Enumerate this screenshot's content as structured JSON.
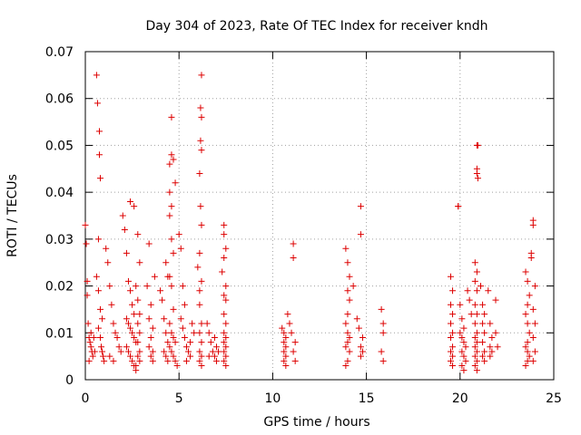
{
  "chart_data": {
    "type": "scatter",
    "title": "Day 304 of 2023, Rate Of TEC Index for receiver kndh",
    "xlabel": "GPS time / hours",
    "ylabel": "ROTI / TECUs",
    "xlim": [
      0,
      25
    ],
    "ylim": [
      0,
      0.07
    ],
    "xticks": [
      0,
      5,
      10,
      15,
      20,
      25
    ],
    "xtick_labels": [
      "0",
      "5",
      "10",
      "15",
      "20",
      "25"
    ],
    "yticks": [
      0,
      0.01,
      0.02,
      0.03,
      0.04,
      0.05,
      0.06,
      0.07
    ],
    "ytick_labels": [
      "0",
      "0.01",
      "0.02",
      "0.03",
      "0.04",
      "0.05",
      "0.06",
      "0.07"
    ],
    "grid": true,
    "marker": "+",
    "colors": {
      "points": "#dd0000",
      "grid": "#a0a0a0",
      "axes": "#000000"
    },
    "points": [
      [
        0.0,
        0.033
      ],
      [
        0.05,
        0.029
      ],
      [
        0.1,
        0.021
      ],
      [
        0.1,
        0.018
      ],
      [
        0.15,
        0.012
      ],
      [
        0.2,
        0.009
      ],
      [
        0.25,
        0.008
      ],
      [
        0.3,
        0.007
      ],
      [
        0.35,
        0.006
      ],
      [
        0.4,
        0.005
      ],
      [
        0.2,
        0.004
      ],
      [
        0.3,
        0.01
      ],
      [
        0.45,
        0.009
      ],
      [
        0.5,
        0.006
      ],
      [
        0.6,
        0.065
      ],
      [
        0.65,
        0.059
      ],
      [
        0.75,
        0.053
      ],
      [
        0.75,
        0.048
      ],
      [
        0.8,
        0.043
      ],
      [
        0.7,
        0.03
      ],
      [
        0.6,
        0.022
      ],
      [
        0.7,
        0.019
      ],
      [
        0.8,
        0.015
      ],
      [
        0.9,
        0.013
      ],
      [
        0.7,
        0.011
      ],
      [
        0.8,
        0.009
      ],
      [
        0.85,
        0.007
      ],
      [
        0.9,
        0.006
      ],
      [
        0.95,
        0.005
      ],
      [
        1.0,
        0.004
      ],
      [
        1.1,
        0.028
      ],
      [
        1.2,
        0.025
      ],
      [
        1.3,
        0.02
      ],
      [
        1.4,
        0.016
      ],
      [
        1.5,
        0.012
      ],
      [
        1.6,
        0.01
      ],
      [
        1.7,
        0.009
      ],
      [
        1.8,
        0.007
      ],
      [
        1.9,
        0.006
      ],
      [
        1.3,
        0.005
      ],
      [
        1.5,
        0.004
      ],
      [
        2.0,
        0.035
      ],
      [
        2.1,
        0.032
      ],
      [
        2.2,
        0.027
      ],
      [
        2.3,
        0.021
      ],
      [
        2.4,
        0.019
      ],
      [
        2.5,
        0.016
      ],
      [
        2.6,
        0.014
      ],
      [
        2.2,
        0.013
      ],
      [
        2.3,
        0.012
      ],
      [
        2.4,
        0.011
      ],
      [
        2.5,
        0.01
      ],
      [
        2.6,
        0.009
      ],
      [
        2.7,
        0.008
      ],
      [
        2.2,
        0.007
      ],
      [
        2.3,
        0.006
      ],
      [
        2.4,
        0.005
      ],
      [
        2.5,
        0.004
      ],
      [
        2.6,
        0.003
      ],
      [
        2.7,
        0.002
      ],
      [
        2.4,
        0.038
      ],
      [
        2.6,
        0.037
      ],
      [
        2.8,
        0.031
      ],
      [
        2.9,
        0.025
      ],
      [
        2.7,
        0.02
      ],
      [
        2.8,
        0.017
      ],
      [
        2.9,
        0.014
      ],
      [
        2.8,
        0.012
      ],
      [
        2.9,
        0.01
      ],
      [
        2.8,
        0.008
      ],
      [
        2.9,
        0.006
      ],
      [
        2.8,
        0.005
      ],
      [
        2.9,
        0.004
      ],
      [
        2.7,
        0.003
      ],
      [
        3.3,
        0.02
      ],
      [
        3.5,
        0.016
      ],
      [
        3.4,
        0.013
      ],
      [
        3.6,
        0.011
      ],
      [
        3.5,
        0.009
      ],
      [
        3.4,
        0.007
      ],
      [
        3.6,
        0.006
      ],
      [
        3.5,
        0.005
      ],
      [
        3.6,
        0.004
      ],
      [
        3.4,
        0.029
      ],
      [
        3.7,
        0.022
      ],
      [
        4.0,
        0.019
      ],
      [
        4.1,
        0.017
      ],
      [
        4.3,
        0.025
      ],
      [
        4.4,
        0.022
      ],
      [
        4.2,
        0.013
      ],
      [
        4.3,
        0.01
      ],
      [
        4.4,
        0.008
      ],
      [
        4.2,
        0.006
      ],
      [
        4.3,
        0.005
      ],
      [
        4.4,
        0.004
      ],
      [
        4.6,
        0.056
      ],
      [
        4.6,
        0.048
      ],
      [
        4.7,
        0.047
      ],
      [
        4.5,
        0.04
      ],
      [
        4.6,
        0.037
      ],
      [
        4.5,
        0.035
      ],
      [
        4.6,
        0.03
      ],
      [
        4.7,
        0.027
      ],
      [
        4.5,
        0.022
      ],
      [
        4.6,
        0.02
      ],
      [
        4.7,
        0.015
      ],
      [
        4.5,
        0.012
      ],
      [
        4.6,
        0.01
      ],
      [
        4.7,
        0.009
      ],
      [
        4.8,
        0.008
      ],
      [
        4.5,
        0.007
      ],
      [
        4.6,
        0.006
      ],
      [
        4.7,
        0.005
      ],
      [
        4.8,
        0.004
      ],
      [
        4.9,
        0.003
      ],
      [
        4.5,
        0.046
      ],
      [
        4.8,
        0.042
      ],
      [
        5.0,
        0.031
      ],
      [
        5.1,
        0.028
      ],
      [
        5.2,
        0.02
      ],
      [
        5.3,
        0.016
      ],
      [
        5.1,
        0.013
      ],
      [
        5.2,
        0.011
      ],
      [
        5.3,
        0.009
      ],
      [
        5.4,
        0.007
      ],
      [
        5.5,
        0.006
      ],
      [
        5.6,
        0.005
      ],
      [
        5.4,
        0.004
      ],
      [
        5.7,
        0.012
      ],
      [
        5.8,
        0.01
      ],
      [
        5.6,
        0.008
      ],
      [
        6.0,
        0.024
      ],
      [
        6.1,
        0.019
      ],
      [
        6.2,
        0.065
      ],
      [
        6.15,
        0.058
      ],
      [
        6.2,
        0.056
      ],
      [
        6.15,
        0.051
      ],
      [
        6.2,
        0.049
      ],
      [
        6.1,
        0.044
      ],
      [
        6.15,
        0.037
      ],
      [
        6.2,
        0.033
      ],
      [
        6.1,
        0.027
      ],
      [
        6.2,
        0.021
      ],
      [
        6.1,
        0.016
      ],
      [
        6.2,
        0.012
      ],
      [
        6.1,
        0.01
      ],
      [
        6.2,
        0.008
      ],
      [
        6.1,
        0.006
      ],
      [
        6.2,
        0.005
      ],
      [
        6.1,
        0.004
      ],
      [
        6.2,
        0.003
      ],
      [
        6.5,
        0.012
      ],
      [
        6.6,
        0.01
      ],
      [
        6.7,
        0.008
      ],
      [
        6.8,
        0.006
      ],
      [
        6.6,
        0.005
      ],
      [
        6.9,
        0.009
      ],
      [
        7.0,
        0.007
      ],
      [
        7.1,
        0.006
      ],
      [
        6.9,
        0.005
      ],
      [
        7.0,
        0.004
      ],
      [
        7.4,
        0.033
      ],
      [
        7.4,
        0.031
      ],
      [
        7.5,
        0.028
      ],
      [
        7.4,
        0.026
      ],
      [
        7.3,
        0.023
      ],
      [
        7.5,
        0.02
      ],
      [
        7.4,
        0.018
      ],
      [
        7.5,
        0.017
      ],
      [
        7.4,
        0.014
      ],
      [
        7.5,
        0.012
      ],
      [
        7.4,
        0.01
      ],
      [
        7.5,
        0.009
      ],
      [
        7.4,
        0.008
      ],
      [
        7.5,
        0.007
      ],
      [
        7.4,
        0.006
      ],
      [
        7.5,
        0.005
      ],
      [
        7.4,
        0.004
      ],
      [
        7.5,
        0.003
      ],
      [
        10.5,
        0.011
      ],
      [
        10.6,
        0.01
      ],
      [
        10.7,
        0.009
      ],
      [
        10.6,
        0.008
      ],
      [
        10.7,
        0.007
      ],
      [
        10.6,
        0.006
      ],
      [
        10.7,
        0.005
      ],
      [
        10.6,
        0.004
      ],
      [
        10.7,
        0.003
      ],
      [
        10.8,
        0.014
      ],
      [
        10.9,
        0.012
      ],
      [
        11.0,
        0.01
      ],
      [
        11.1,
        0.029
      ],
      [
        11.1,
        0.026
      ],
      [
        11.2,
        0.008
      ],
      [
        11.1,
        0.006
      ],
      [
        11.2,
        0.004
      ],
      [
        13.9,
        0.028
      ],
      [
        14.0,
        0.025
      ],
      [
        14.1,
        0.022
      ],
      [
        14.0,
        0.019
      ],
      [
        14.1,
        0.017
      ],
      [
        14.0,
        0.014
      ],
      [
        13.9,
        0.012
      ],
      [
        14.0,
        0.01
      ],
      [
        14.1,
        0.009
      ],
      [
        14.0,
        0.008
      ],
      [
        13.9,
        0.007
      ],
      [
        14.1,
        0.006
      ],
      [
        14.0,
        0.004
      ],
      [
        13.9,
        0.003
      ],
      [
        14.3,
        0.02
      ],
      [
        14.5,
        0.013
      ],
      [
        14.6,
        0.011
      ],
      [
        14.7,
        0.037
      ],
      [
        14.7,
        0.031
      ],
      [
        14.8,
        0.009
      ],
      [
        14.7,
        0.007
      ],
      [
        14.8,
        0.006
      ],
      [
        14.7,
        0.005
      ],
      [
        15.8,
        0.015
      ],
      [
        15.9,
        0.012
      ],
      [
        15.9,
        0.01
      ],
      [
        15.8,
        0.006
      ],
      [
        15.9,
        0.004
      ],
      [
        19.5,
        0.022
      ],
      [
        19.6,
        0.019
      ],
      [
        19.5,
        0.016
      ],
      [
        19.6,
        0.014
      ],
      [
        19.5,
        0.012
      ],
      [
        19.6,
        0.01
      ],
      [
        19.5,
        0.009
      ],
      [
        19.6,
        0.007
      ],
      [
        19.5,
        0.006
      ],
      [
        19.6,
        0.005
      ],
      [
        19.5,
        0.004
      ],
      [
        19.6,
        0.003
      ],
      [
        19.9,
        0.037
      ],
      [
        19.9,
        0.037
      ],
      [
        20.0,
        0.016
      ],
      [
        20.1,
        0.013
      ],
      [
        20.2,
        0.011
      ],
      [
        20.0,
        0.01
      ],
      [
        20.1,
        0.009
      ],
      [
        20.2,
        0.008
      ],
      [
        20.3,
        0.007
      ],
      [
        20.1,
        0.006
      ],
      [
        20.2,
        0.005
      ],
      [
        20.3,
        0.004
      ],
      [
        20.1,
        0.003
      ],
      [
        20.2,
        0.002
      ],
      [
        20.4,
        0.019
      ],
      [
        20.5,
        0.017
      ],
      [
        20.6,
        0.014
      ],
      [
        20.9,
        0.05
      ],
      [
        20.95,
        0.05
      ],
      [
        20.9,
        0.045
      ],
      [
        20.9,
        0.044
      ],
      [
        20.95,
        0.043
      ],
      [
        20.8,
        0.025
      ],
      [
        20.9,
        0.023
      ],
      [
        20.8,
        0.021
      ],
      [
        20.9,
        0.019
      ],
      [
        20.8,
        0.016
      ],
      [
        20.9,
        0.014
      ],
      [
        20.8,
        0.012
      ],
      [
        20.9,
        0.01
      ],
      [
        20.8,
        0.009
      ],
      [
        20.9,
        0.008
      ],
      [
        20.8,
        0.007
      ],
      [
        20.9,
        0.006
      ],
      [
        20.8,
        0.005
      ],
      [
        20.9,
        0.004
      ],
      [
        20.8,
        0.003
      ],
      [
        20.9,
        0.002
      ],
      [
        21.1,
        0.02
      ],
      [
        21.2,
        0.016
      ],
      [
        21.3,
        0.014
      ],
      [
        21.2,
        0.012
      ],
      [
        21.3,
        0.01
      ],
      [
        21.2,
        0.008
      ],
      [
        21.3,
        0.006
      ],
      [
        21.2,
        0.005
      ],
      [
        21.3,
        0.004
      ],
      [
        21.5,
        0.019
      ],
      [
        21.6,
        0.012
      ],
      [
        21.7,
        0.009
      ],
      [
        21.6,
        0.007
      ],
      [
        21.7,
        0.006
      ],
      [
        21.6,
        0.005
      ],
      [
        21.9,
        0.017
      ],
      [
        21.9,
        0.01
      ],
      [
        22.0,
        0.007
      ],
      [
        23.5,
        0.023
      ],
      [
        23.6,
        0.021
      ],
      [
        23.7,
        0.018
      ],
      [
        23.6,
        0.016
      ],
      [
        23.5,
        0.014
      ],
      [
        23.6,
        0.012
      ],
      [
        23.7,
        0.01
      ],
      [
        23.6,
        0.008
      ],
      [
        23.5,
        0.007
      ],
      [
        23.6,
        0.006
      ],
      [
        23.7,
        0.005
      ],
      [
        23.6,
        0.004
      ],
      [
        23.5,
        0.003
      ],
      [
        23.8,
        0.027
      ],
      [
        23.8,
        0.026
      ],
      [
        23.9,
        0.034
      ],
      [
        23.9,
        0.033
      ],
      [
        24.0,
        0.02
      ],
      [
        23.9,
        0.015
      ],
      [
        24.0,
        0.012
      ],
      [
        23.9,
        0.009
      ],
      [
        24.0,
        0.006
      ],
      [
        23.9,
        0.004
      ]
    ]
  }
}
